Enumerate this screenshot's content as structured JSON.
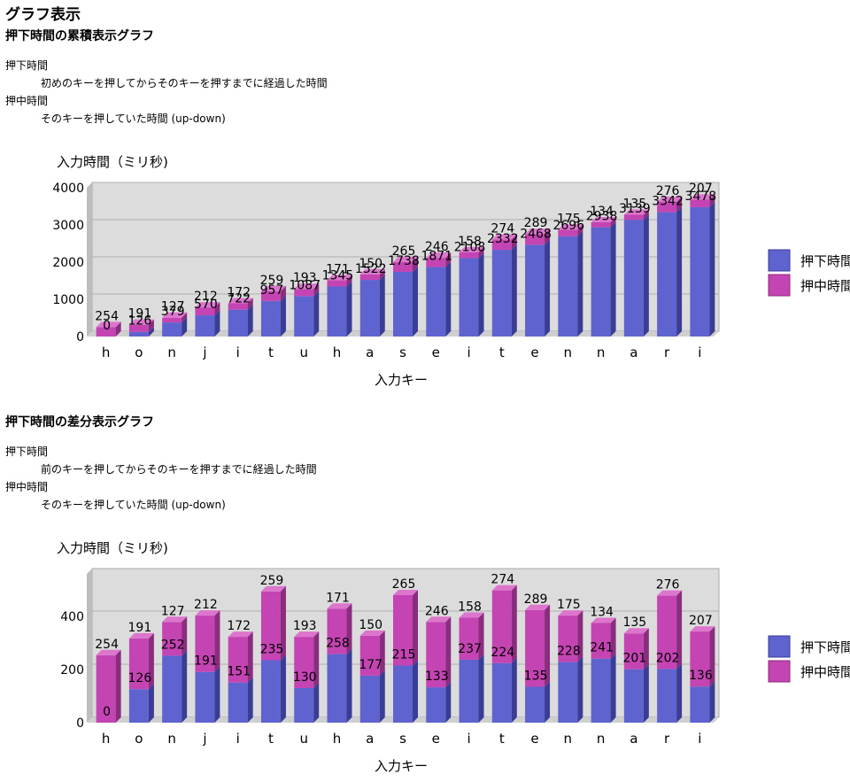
{
  "page": {
    "title": "グラフ表示"
  },
  "colors": {
    "push_down_front": "#5f63cf",
    "push_down_side": "#3a3d94",
    "push_down_top": "#8286e6",
    "push_hold_front": "#c544b3",
    "push_hold_side": "#8a2d7e",
    "push_hold_top": "#dc76cd",
    "plot_back": "#dcdcdc",
    "plot_wall": "#bdbdbd",
    "grid": "#b0b0b0"
  },
  "sections": [
    {
      "title": "押下時間の累積表示グラフ",
      "definitions": [
        {
          "term": "押下時間",
          "desc": "初めのキーを押してからそのキーを押すまでに経過した時間"
        },
        {
          "term": "押中時間",
          "desc": "そのキーを押していた時間 (up-down)"
        }
      ]
    },
    {
      "title": "押下時間の差分表示グラフ",
      "definitions": [
        {
          "term": "押下時間",
          "desc": "前のキーを押してからそのキーを押すまでに経過した時間"
        },
        {
          "term": "押中時間",
          "desc": "そのキーを押していた時間 (up-down)"
        }
      ]
    }
  ],
  "chart_data": [
    {
      "type": "bar",
      "stacked": true,
      "style": "3d",
      "xlabel": "入力キー",
      "ylabel": "入力時間（ミリ秒)",
      "ylim": [
        0,
        4000
      ],
      "yticks": [
        0,
        1000,
        2000,
        3000,
        4000
      ],
      "grid": true,
      "legend": "right",
      "categories": [
        "h",
        "o",
        "n",
        "j",
        "i",
        "t",
        "u",
        "h",
        "a",
        "s",
        "e",
        "i",
        "t",
        "e",
        "n",
        "n",
        "a",
        "r",
        "i"
      ],
      "series": [
        {
          "name": "押下時間",
          "values": [
            0,
            126,
            379,
            570,
            722,
            957,
            1087,
            1345,
            1522,
            1738,
            1871,
            2108,
            2332,
            2468,
            2696,
            2938,
            3139,
            3342,
            3478
          ]
        },
        {
          "name": "押中時間",
          "values": [
            254,
            191,
            127,
            212,
            172,
            259,
            193,
            171,
            150,
            265,
            246,
            158,
            274,
            289,
            175,
            134,
            135,
            276,
            207
          ]
        }
      ]
    },
    {
      "type": "bar",
      "stacked": true,
      "style": "3d",
      "xlabel": "入力キー",
      "ylabel": "入力時間（ミリ秒)",
      "ylim": [
        0,
        560
      ],
      "yticks": [
        0,
        200,
        400
      ],
      "grid": true,
      "legend": "right",
      "categories": [
        "h",
        "o",
        "n",
        "j",
        "i",
        "t",
        "u",
        "h",
        "a",
        "s",
        "e",
        "i",
        "t",
        "e",
        "n",
        "n",
        "a",
        "r",
        "i"
      ],
      "series": [
        {
          "name": "押下時間",
          "values": [
            0,
            126,
            252,
            191,
            151,
            235,
            130,
            258,
            177,
            215,
            133,
            237,
            224,
            135,
            228,
            241,
            201,
            202,
            136
          ]
        },
        {
          "name": "押中時間",
          "values": [
            254,
            191,
            127,
            212,
            172,
            259,
            193,
            171,
            150,
            265,
            246,
            158,
            274,
            289,
            175,
            134,
            135,
            276,
            207
          ]
        }
      ]
    }
  ]
}
